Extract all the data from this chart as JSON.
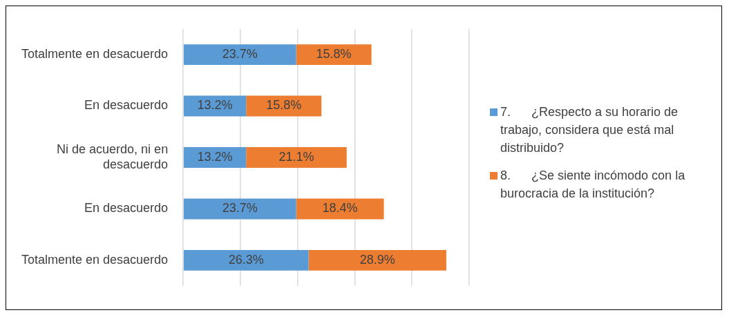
{
  "chart_data": {
    "type": "bar",
    "orientation": "horizontal",
    "stacked": true,
    "tick_labels": "y",
    "grid": "x",
    "xlim": [
      0,
      60
    ],
    "xticks": [
      {
        "value": 0,
        "label": null
      },
      {
        "value": 12,
        "label": null
      },
      {
        "value": 24,
        "label": null
      },
      {
        "value": 36,
        "label": null
      },
      {
        "value": 48,
        "label": null
      },
      {
        "value": 60,
        "label": null
      }
    ],
    "legend": "right",
    "categories": [
      "Totalmente en desacuerdo",
      "En desacuerdo",
      "Ni de acuerdo, ni en desacuerdo",
      "En desacuerdo",
      "Totalmente en desacuerdo"
    ],
    "series": [
      {
        "name": "7.      ¿Respecto a su horario de trabajo, considera que está mal distribuido?",
        "color": "#5b9bd5",
        "values": [
          23.7,
          13.2,
          13.2,
          23.7,
          26.3
        ],
        "value_labels": [
          "23.7%",
          "13.2%",
          "13.2%",
          "23.7%",
          "26.3%"
        ]
      },
      {
        "name": "8.      ¿Se siente incómodo con la burocracia de la institución?",
        "color": "#ed7d31",
        "values": [
          15.8,
          15.8,
          21.1,
          18.4,
          28.9
        ],
        "value_labels": [
          "15.8%",
          "15.8%",
          "21.1%",
          "18.4%",
          "28.9%"
        ]
      }
    ]
  }
}
